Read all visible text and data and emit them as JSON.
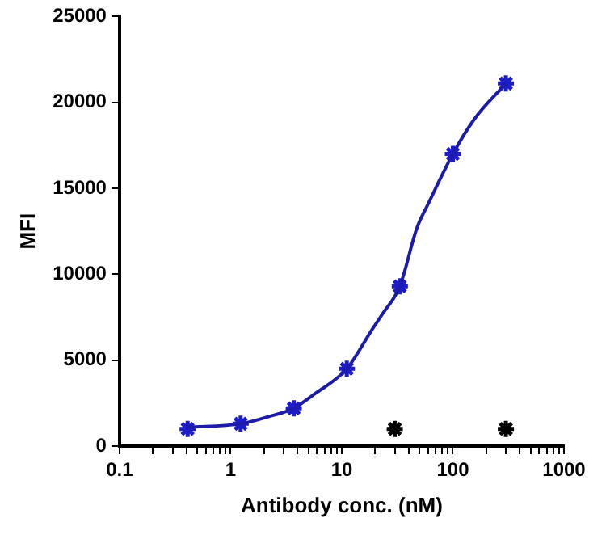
{
  "chart_data": {
    "type": "scatter",
    "xlabel": "Antibody conc. (nM)",
    "ylabel": "MFI",
    "log": "x",
    "grid": false,
    "legend": false,
    "xlim": [
      0.1,
      1000
    ],
    "ylim": [
      0,
      25000
    ],
    "xticks": [
      0.1,
      {
        "value": 0.2,
        "label": null
      },
      {
        "value": 0.3,
        "label": null
      },
      {
        "value": 0.4,
        "label": null
      },
      {
        "value": 0.5,
        "label": null
      },
      {
        "value": 0.6,
        "label": null
      },
      {
        "value": 0.7,
        "label": null
      },
      {
        "value": 0.8,
        "label": null
      },
      {
        "value": 0.9,
        "label": null
      },
      1,
      {
        "value": 2,
        "label": null
      },
      {
        "value": 3,
        "label": null
      },
      {
        "value": 4,
        "label": null
      },
      {
        "value": 5,
        "label": null
      },
      {
        "value": 6,
        "label": null
      },
      {
        "value": 7,
        "label": null
      },
      {
        "value": 8,
        "label": null
      },
      {
        "value": 9,
        "label": null
      },
      10,
      {
        "value": 20,
        "label": null
      },
      {
        "value": 30,
        "label": null
      },
      {
        "value": 40,
        "label": null
      },
      {
        "value": 50,
        "label": null
      },
      {
        "value": 60,
        "label": null
      },
      {
        "value": 70,
        "label": null
      },
      {
        "value": 80,
        "label": null
      },
      {
        "value": 90,
        "label": null
      },
      100,
      {
        "value": 200,
        "label": null
      },
      {
        "value": 300,
        "label": null
      },
      {
        "value": 400,
        "label": null
      },
      {
        "value": 500,
        "label": null
      },
      {
        "value": 600,
        "label": null
      },
      {
        "value": 700,
        "label": null
      },
      {
        "value": 800,
        "label": null
      },
      {
        "value": 900,
        "label": null
      },
      1000
    ],
    "yticks": [
      0,
      5000,
      10000,
      15000,
      20000,
      25000
    ],
    "series": [
      {
        "type": "line",
        "color": "#1c1ca8",
        "marker": "none",
        "line_style": "solid",
        "x": [
          0.41,
          1.23,
          2.15,
          3.7,
          5.6,
          11.1,
          18.4,
          23.3,
          33.3,
          47.5,
          60,
          100,
          155,
          300
        ],
        "values": [
          1100,
          1300,
          1700,
          2200,
          3000,
          4500,
          6700,
          7700,
          9300,
          12700,
          14100,
          17000,
          19000,
          21100
        ]
      },
      {
        "color": "#1c1cc8",
        "marker": "cross",
        "x": [
          0.41,
          1.23,
          3.7,
          11.1,
          33.3,
          100,
          300
        ],
        "values": [
          1000,
          1300,
          2200,
          4500,
          9300,
          17000,
          21100
        ]
      },
      {
        "color": "#000000",
        "marker": "cross",
        "x": [
          30,
          300
        ],
        "values": [
          1000,
          1000
        ]
      }
    ]
  }
}
